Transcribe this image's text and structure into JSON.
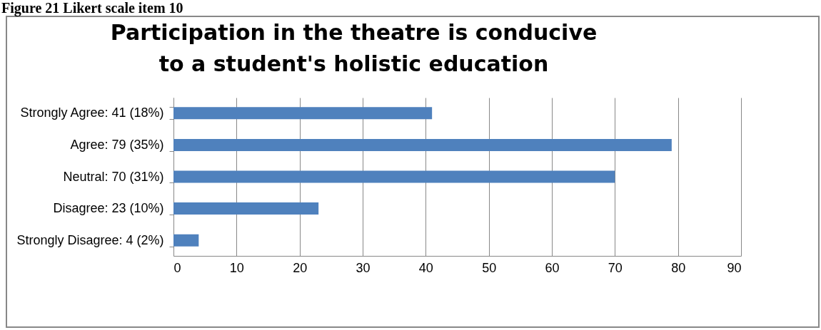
{
  "chart_data": {
    "type": "bar",
    "orientation": "horizontal",
    "title": "Participation in the theatre is conducive to a student's holistic education",
    "annotations": [
      "Figure 21 Likert scale item 10"
    ],
    "categories": [
      "Strongly Agree: 41 (18%)",
      "Agree: 79 (35%)",
      "Neutral: 70 (31%)",
      "Disagree: 23 (10%)",
      "Strongly Disagree: 4 (2%)"
    ],
    "values": [
      41,
      79,
      70,
      23,
      4
    ],
    "color": "#4f81bd",
    "xlim": [
      0,
      90
    ],
    "xticks": [
      0,
      10,
      20,
      30,
      40,
      50,
      60,
      70,
      80,
      90
    ],
    "grid": "x"
  }
}
